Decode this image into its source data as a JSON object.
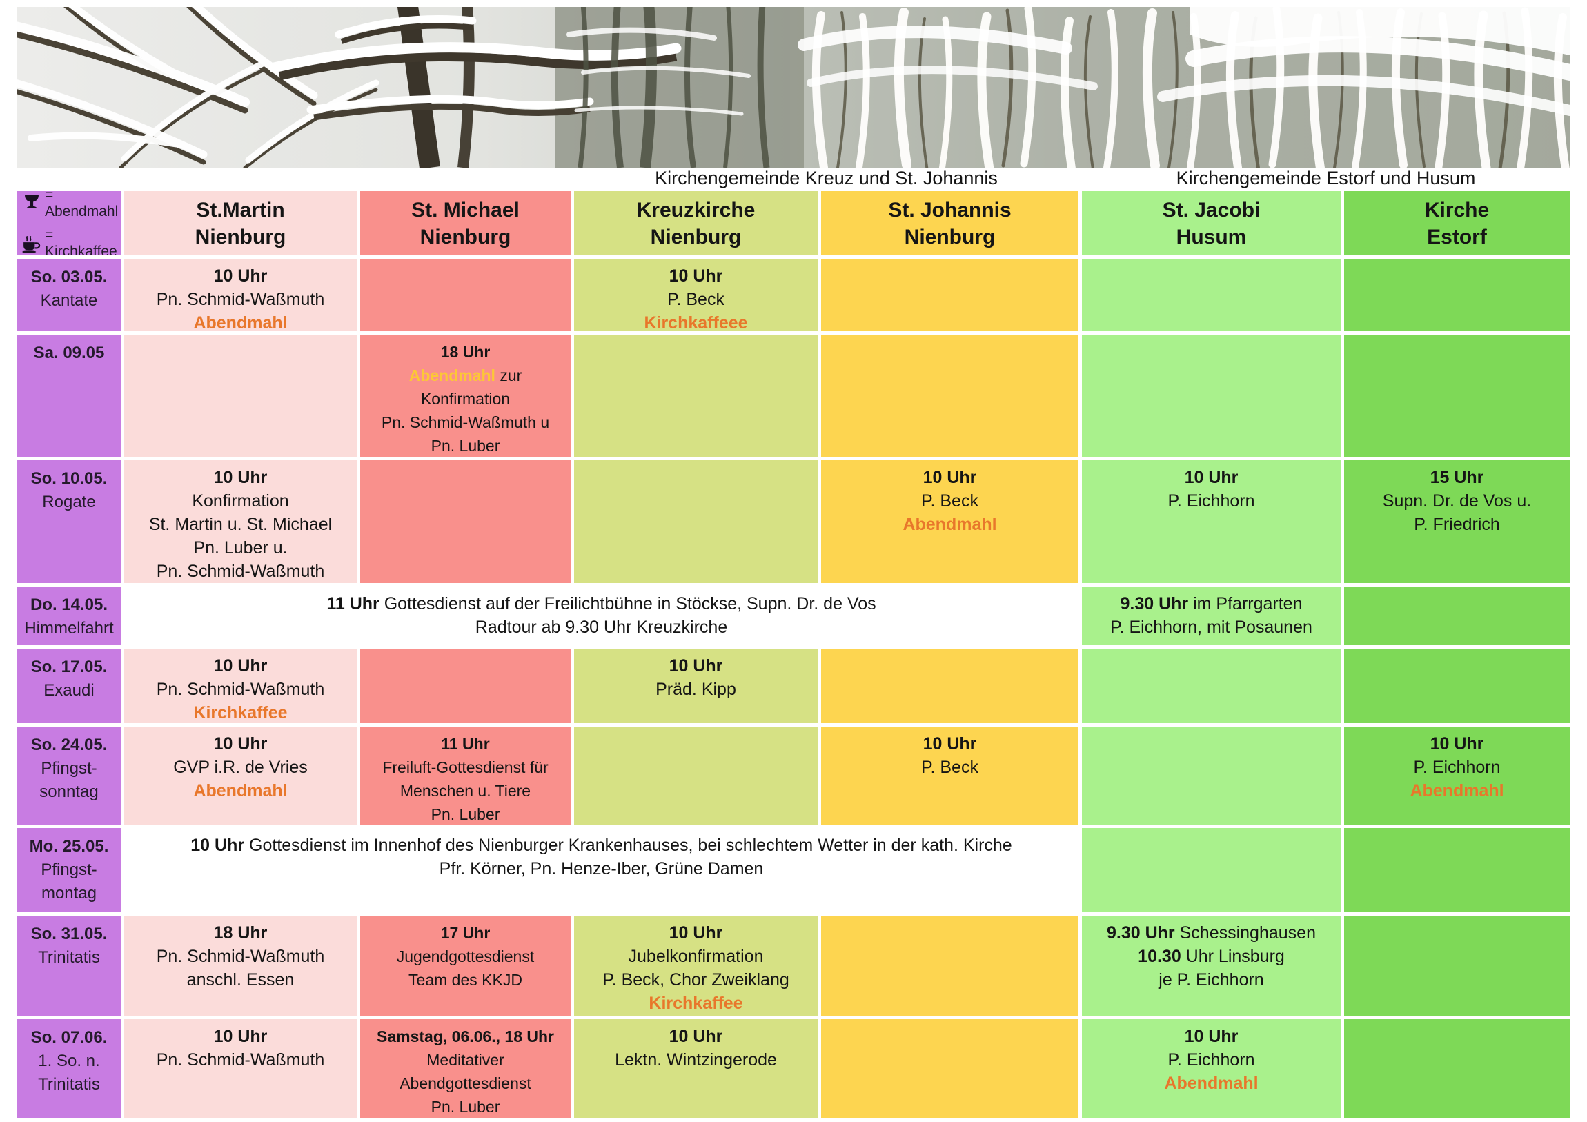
{
  "group_labels": {
    "left": "Kirchengemeinde Kreuz und St. Johannis",
    "right": "Kirchengemeinde Estorf und Husum"
  },
  "legend": {
    "items": [
      {
        "icon": "chalice-icon",
        "label": "= Abendmahl"
      },
      {
        "icon": "coffee-cup-icon",
        "label": "= Kirchkaffee"
      }
    ]
  },
  "colors": {
    "purple": "#c87ce2",
    "st_martin_pink": "#fbdcda",
    "st_michael_salmon": "#f9908c",
    "kreuzkirche_yellowgreen": "#d6e184",
    "st_johannis_yellow": "#fdd550",
    "st_jacobi_lightgreen": "#a9f18c",
    "estorf_green": "#7ed957",
    "accent_orange": "#e8772b",
    "accent_gold": "#fcc737"
  },
  "table": {
    "columns": [
      {
        "key": "st-martin",
        "line1": "St.Martin",
        "line2": "Nienburg"
      },
      {
        "key": "st-michael",
        "line1": "St. Michael",
        "line2": "Nienburg"
      },
      {
        "key": "kreuzkirche",
        "line1": "Kreuzkirche",
        "line2": "Nienburg"
      },
      {
        "key": "st-johannis",
        "line1": "St. Johannis",
        "line2": "Nienburg"
      },
      {
        "key": "st-jacobi",
        "line1": "St. Jacobi",
        "line2": "Husum"
      },
      {
        "key": "kirche-estorf",
        "line1": "Kirche",
        "line2": "Estorf"
      }
    ],
    "rows": [
      {
        "date": [
          "So. 03.05.",
          "Kantate"
        ],
        "cells": [
          {
            "col": 0,
            "lines": [
              [
                {
                  "t": "10 Uhr",
                  "s": "b"
                }
              ],
              [
                {
                  "t": "Pn. Schmid-Waßmuth",
                  "s": "n"
                }
              ],
              [
                {
                  "t": "Abendmahl",
                  "s": "o"
                }
              ]
            ]
          },
          {
            "col": 1,
            "lines": []
          },
          {
            "col": 2,
            "lines": [
              [
                {
                  "t": "10 Uhr",
                  "s": "b"
                }
              ],
              [
                {
                  "t": "P. Beck",
                  "s": "n"
                }
              ],
              [
                {
                  "t": "Kirchkaffeee",
                  "s": "o"
                }
              ]
            ]
          },
          {
            "col": 3,
            "lines": []
          },
          {
            "col": 4,
            "lines": []
          },
          {
            "col": 5,
            "lines": []
          }
        ]
      },
      {
        "date": [
          "Sa. 09.05"
        ],
        "cells": [
          {
            "col": 0,
            "lines": []
          },
          {
            "col": 1,
            "lines": [
              [
                {
                  "t": "18 Uhr",
                  "s": "b"
                }
              ],
              [
                {
                  "t": "Abendmahl",
                  "s": "y"
                },
                {
                  "t": " zur",
                  "s": "n"
                }
              ],
              [
                {
                  "t": "Konfirmation",
                  "s": "n"
                }
              ],
              [
                {
                  "t": "Pn. Schmid-Waßmuth u",
                  "s": "n"
                }
              ],
              [
                {
                  "t": "Pn. Luber",
                  "s": "n"
                }
              ]
            ]
          },
          {
            "col": 2,
            "lines": []
          },
          {
            "col": 3,
            "lines": []
          },
          {
            "col": 4,
            "lines": []
          },
          {
            "col": 5,
            "lines": []
          }
        ]
      },
      {
        "date": [
          "So. 10.05.",
          "Rogate"
        ],
        "cells": [
          {
            "col": 0,
            "lines": [
              [
                {
                  "t": "10 Uhr",
                  "s": "b"
                }
              ],
              [
                {
                  "t": "Konfirmation",
                  "s": "n"
                }
              ],
              [
                {
                  "t": "St. Martin u. St. Michael",
                  "s": "n"
                }
              ],
              [
                {
                  "t": "Pn. Luber u.",
                  "s": "n"
                }
              ],
              [
                {
                  "t": "Pn. Schmid-Waßmuth",
                  "s": "n"
                }
              ]
            ]
          },
          {
            "col": 1,
            "lines": []
          },
          {
            "col": 2,
            "lines": []
          },
          {
            "col": 3,
            "lines": [
              [
                {
                  "t": "10 Uhr",
                  "s": "b"
                }
              ],
              [
                {
                  "t": "P. Beck",
                  "s": "n"
                }
              ],
              [
                {
                  "t": "Abendmahl",
                  "s": "o"
                }
              ]
            ]
          },
          {
            "col": 4,
            "lines": [
              [
                {
                  "t": "10 Uhr",
                  "s": "b"
                }
              ],
              [
                {
                  "t": "P. Eichhorn",
                  "s": "n"
                }
              ]
            ]
          },
          {
            "col": 5,
            "lines": [
              [
                {
                  "t": "15 Uhr",
                  "s": "b"
                }
              ],
              [
                {
                  "t": "Supn. Dr. de Vos u.",
                  "s": "n"
                }
              ],
              [
                {
                  "t": "P. Friedrich",
                  "s": "n"
                }
              ]
            ]
          }
        ]
      },
      {
        "date": [
          "Do. 14.05.",
          "Himmelfahrt"
        ],
        "cells": [
          {
            "span": 4,
            "lines": [
              [
                {
                  "t": "11 Uhr",
                  "s": "b"
                },
                {
                  "t": " Gottesdienst auf der Freilichtbühne in Stöckse, Supn. Dr. de Vos",
                  "s": "n"
                }
              ],
              [
                {
                  "t": "Radtour ab 9.30 Uhr Kreuzkirche",
                  "s": "n"
                }
              ]
            ]
          },
          {
            "col": 4,
            "lines": [
              [
                {
                  "t": "9.30 Uhr",
                  "s": "b"
                },
                {
                  "t": " im Pfarrgarten",
                  "s": "n"
                }
              ],
              [
                {
                  "t": "P. Eichhorn, mit Posaunen",
                  "s": "n"
                }
              ]
            ]
          },
          {
            "col": 5,
            "lines": []
          }
        ]
      },
      {
        "date": [
          "So. 17.05.",
          "Exaudi"
        ],
        "cells": [
          {
            "col": 0,
            "lines": [
              [
                {
                  "t": "10 Uhr",
                  "s": "b"
                }
              ],
              [
                {
                  "t": "Pn. Schmid-Waßmuth",
                  "s": "n"
                }
              ],
              [
                {
                  "t": "Kirchkaffee",
                  "s": "o"
                }
              ]
            ]
          },
          {
            "col": 1,
            "lines": []
          },
          {
            "col": 2,
            "lines": [
              [
                {
                  "t": "10 Uhr",
                  "s": "b"
                }
              ],
              [
                {
                  "t": "Präd. Kipp",
                  "s": "n"
                }
              ]
            ]
          },
          {
            "col": 3,
            "lines": []
          },
          {
            "col": 4,
            "lines": []
          },
          {
            "col": 5,
            "lines": []
          }
        ]
      },
      {
        "date": [
          "So. 24.05.",
          "Pfingst-",
          "sonntag"
        ],
        "cells": [
          {
            "col": 0,
            "lines": [
              [
                {
                  "t": "10 Uhr",
                  "s": "b"
                }
              ],
              [
                {
                  "t": "GVP i.R. de Vries",
                  "s": "n"
                }
              ],
              [
                {
                  "t": "Abendmahl",
                  "s": "o"
                }
              ]
            ]
          },
          {
            "col": 1,
            "lines": [
              [
                {
                  "t": "11 Uhr",
                  "s": "b"
                }
              ],
              [
                {
                  "t": "Freiluft-Gottesdienst für",
                  "s": "n"
                }
              ],
              [
                {
                  "t": "Menschen u. Tiere",
                  "s": "n"
                }
              ],
              [
                {
                  "t": "Pn. Luber",
                  "s": "n"
                }
              ]
            ]
          },
          {
            "col": 2,
            "lines": []
          },
          {
            "col": 3,
            "lines": [
              [
                {
                  "t": "10 Uhr",
                  "s": "b"
                }
              ],
              [
                {
                  "t": "P. Beck",
                  "s": "n"
                }
              ]
            ]
          },
          {
            "col": 4,
            "lines": []
          },
          {
            "col": 5,
            "lines": [
              [
                {
                  "t": "10 Uhr",
                  "s": "b"
                }
              ],
              [
                {
                  "t": "P. Eichhorn",
                  "s": "n"
                }
              ],
              [
                {
                  "t": "Abendmahl",
                  "s": "o"
                }
              ]
            ]
          }
        ]
      },
      {
        "date": [
          "Mo. 25.05.",
          "Pfingst-",
          "montag"
        ],
        "cells": [
          {
            "span": 4,
            "lines": [
              [
                {
                  "t": "10 Uhr",
                  "s": "b"
                },
                {
                  "t": " Gottesdienst im Innenhof des Nienburger Krankenhauses, bei schlechtem Wetter in der kath. Kirche",
                  "s": "n"
                }
              ],
              [
                {
                  "t": "Pfr. Körner, Pn. Henze-Iber, Grüne Damen",
                  "s": "n"
                }
              ]
            ]
          },
          {
            "col": 4,
            "lines": []
          },
          {
            "col": 5,
            "lines": []
          }
        ]
      },
      {
        "date": [
          "So. 31.05.",
          "Trinitatis"
        ],
        "cells": [
          {
            "col": 0,
            "lines": [
              [
                {
                  "t": "18 Uhr",
                  "s": "b"
                }
              ],
              [
                {
                  "t": "Pn. Schmid-Waßmuth",
                  "s": "n"
                }
              ],
              [
                {
                  "t": "anschl. Essen",
                  "s": "n"
                }
              ]
            ]
          },
          {
            "col": 1,
            "lines": [
              [
                {
                  "t": "17 Uhr",
                  "s": "b"
                }
              ],
              [
                {
                  "t": "Jugendgottesdienst",
                  "s": "n"
                }
              ],
              [
                {
                  "t": "Team des KKJD",
                  "s": "n"
                }
              ]
            ]
          },
          {
            "col": 2,
            "lines": [
              [
                {
                  "t": "10 Uhr",
                  "s": "b"
                }
              ],
              [
                {
                  "t": "Jubelkonfirmation",
                  "s": "n"
                }
              ],
              [
                {
                  "t": "P. Beck, Chor Zweiklang",
                  "s": "n"
                }
              ],
              [
                {
                  "t": "Kirchkaffee",
                  "s": "o"
                }
              ]
            ]
          },
          {
            "col": 3,
            "lines": []
          },
          {
            "col": 4,
            "lines": [
              [
                {
                  "t": "9.30 Uhr",
                  "s": "b"
                },
                {
                  "t": " Schessinghausen",
                  "s": "n"
                }
              ],
              [
                {
                  "t": "10.30",
                  "s": "b"
                },
                {
                  "t": " Uhr Linsburg",
                  "s": "n"
                }
              ],
              [
                {
                  "t": "je P. Eichhorn",
                  "s": "n"
                }
              ]
            ]
          },
          {
            "col": 5,
            "lines": []
          }
        ]
      },
      {
        "date": [
          "So. 07.06.",
          "1. So. n.",
          "Trinitatis"
        ],
        "cells": [
          {
            "col": 0,
            "lines": [
              [
                {
                  "t": "10 Uhr",
                  "s": "b"
                }
              ],
              [
                {
                  "t": "Pn. Schmid-Waßmuth",
                  "s": "n"
                }
              ]
            ]
          },
          {
            "col": 1,
            "lines": [
              [
                {
                  "t": "Samstag, 06.06., 18 Uhr",
                  "s": "b"
                }
              ],
              [
                {
                  "t": "Meditativer",
                  "s": "n"
                }
              ],
              [
                {
                  "t": "Abendgottesdienst",
                  "s": "n"
                }
              ],
              [
                {
                  "t": "Pn. Luber",
                  "s": "n"
                }
              ]
            ]
          },
          {
            "col": 2,
            "lines": [
              [
                {
                  "t": "10 Uhr",
                  "s": "b"
                }
              ],
              [
                {
                  "t": "Lektn. Wintzingerode",
                  "s": "n"
                }
              ]
            ]
          },
          {
            "col": 3,
            "lines": []
          },
          {
            "col": 4,
            "lines": [
              [
                {
                  "t": "10 Uhr",
                  "s": "b"
                }
              ],
              [
                {
                  "t": "P. Eichhorn",
                  "s": "n"
                }
              ],
              [
                {
                  "t": "Abendmahl",
                  "s": "o"
                }
              ]
            ]
          },
          {
            "col": 5,
            "lines": []
          }
        ]
      }
    ]
  }
}
